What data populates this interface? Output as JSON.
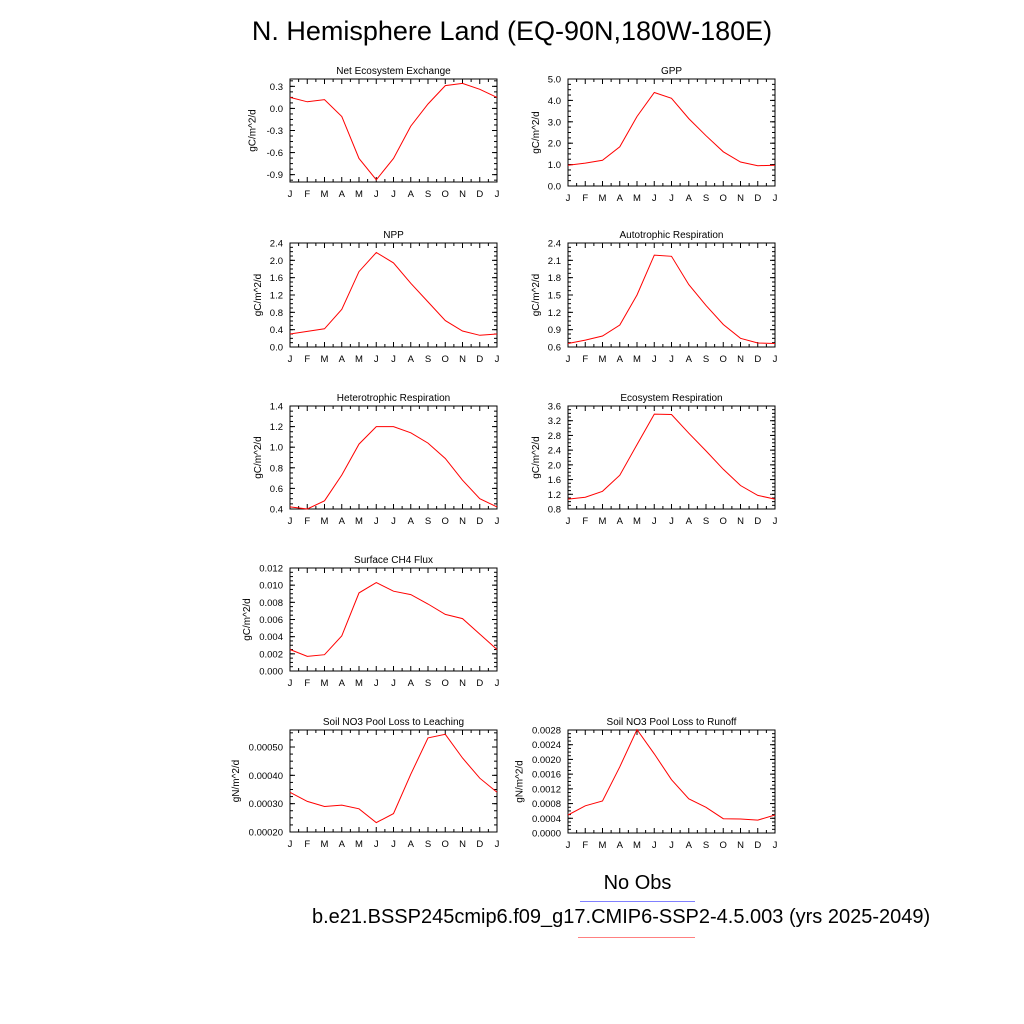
{
  "title": "N. Hemisphere Land (EQ-90N,180W-180E)",
  "legend": {
    "obs_label": "No Obs",
    "run_label": "b.e21.BSSP245cmip6.f09_g17.CMIP6-SSP2-4.5.003 (yrs 2025-2049)",
    "obs_color": "#8080ff",
    "run_color": "#ff8080"
  },
  "line_color": "#ff0000",
  "chart_data": [
    {
      "type": "line",
      "title": "Net Ecosystem Exchange",
      "ylabel": "gC/m^2/d",
      "x": [
        "J",
        "F",
        "M",
        "A",
        "M",
        "J",
        "J",
        "A",
        "S",
        "O",
        "N",
        "D",
        "J"
      ],
      "values": [
        0.15,
        0.09,
        0.12,
        -0.11,
        -0.68,
        -0.97,
        -0.68,
        -0.24,
        0.06,
        0.31,
        0.34,
        0.26,
        0.15
      ],
      "ylim": [
        -1.0,
        0.4
      ],
      "yticks": [
        "0.3",
        "0.0",
        "-0.3",
        "-0.6",
        "-0.9"
      ]
    },
    {
      "type": "line",
      "title": "GPP",
      "ylabel": "gC/m^2/d",
      "x": [
        "J",
        "F",
        "M",
        "A",
        "M",
        "J",
        "J",
        "A",
        "S",
        "O",
        "N",
        "D",
        "J"
      ],
      "values": [
        0.97,
        1.07,
        1.2,
        1.83,
        3.25,
        4.37,
        4.1,
        3.15,
        2.35,
        1.6,
        1.12,
        0.95,
        0.97
      ],
      "ylim": [
        0.0,
        5.0
      ],
      "yticks": [
        "5.0",
        "4.0",
        "3.0",
        "2.0",
        "1.0",
        "0.0"
      ]
    },
    {
      "type": "line",
      "title": "NPP",
      "ylabel": "gC/m^2/d",
      "x": [
        "J",
        "F",
        "M",
        "A",
        "M",
        "J",
        "J",
        "A",
        "S",
        "O",
        "N",
        "D",
        "J"
      ],
      "values": [
        0.3,
        0.36,
        0.42,
        0.87,
        1.74,
        2.18,
        1.94,
        1.47,
        1.04,
        0.61,
        0.37,
        0.27,
        0.3
      ],
      "ylim": [
        0.0,
        2.4
      ],
      "yticks": [
        "2.4",
        "2.0",
        "1.6",
        "1.2",
        "0.8",
        "0.4",
        "0.0"
      ]
    },
    {
      "type": "line",
      "title": "Autotrophic Respiration",
      "ylabel": "gC/m^2/d",
      "x": [
        "J",
        "F",
        "M",
        "A",
        "M",
        "J",
        "J",
        "A",
        "S",
        "O",
        "N",
        "D",
        "J"
      ],
      "values": [
        0.66,
        0.72,
        0.79,
        0.98,
        1.5,
        2.19,
        2.17,
        1.68,
        1.32,
        0.99,
        0.75,
        0.67,
        0.66
      ],
      "ylim": [
        0.6,
        2.4
      ],
      "yticks": [
        "2.4",
        "2.1",
        "1.8",
        "1.5",
        "1.2",
        "0.9",
        "0.6"
      ]
    },
    {
      "type": "line",
      "title": "Heterotrophic Respiration",
      "ylabel": "gC/m^2/d",
      "x": [
        "J",
        "F",
        "M",
        "A",
        "M",
        "J",
        "J",
        "A",
        "S",
        "O",
        "N",
        "D",
        "J"
      ],
      "values": [
        0.42,
        0.4,
        0.48,
        0.73,
        1.03,
        1.2,
        1.2,
        1.14,
        1.04,
        0.89,
        0.68,
        0.5,
        0.42
      ],
      "ylim": [
        0.4,
        1.4
      ],
      "yticks": [
        "1.4",
        "1.2",
        "1.0",
        "0.8",
        "0.6",
        "0.4"
      ]
    },
    {
      "type": "line",
      "title": "Ecosystem Respiration",
      "ylabel": "gC/m^2/d",
      "x": [
        "J",
        "F",
        "M",
        "A",
        "M",
        "J",
        "J",
        "A",
        "S",
        "O",
        "N",
        "D",
        "J"
      ],
      "values": [
        1.07,
        1.12,
        1.28,
        1.72,
        2.55,
        3.38,
        3.37,
        2.86,
        2.38,
        1.88,
        1.44,
        1.17,
        1.07
      ],
      "ylim": [
        0.8,
        3.6
      ],
      "yticks": [
        "3.6",
        "3.2",
        "2.8",
        "2.4",
        "2.0",
        "1.6",
        "1.2",
        "0.8"
      ]
    },
    {
      "type": "line",
      "title": "Surface CH4 Flux",
      "ylabel": "gC/m^2/d",
      "x": [
        "J",
        "F",
        "M",
        "A",
        "M",
        "J",
        "J",
        "A",
        "S",
        "O",
        "N",
        "D",
        "J"
      ],
      "values": [
        0.0025,
        0.0017,
        0.0019,
        0.0041,
        0.0091,
        0.0103,
        0.0093,
        0.0089,
        0.0078,
        0.0066,
        0.0061,
        0.0043,
        0.0025
      ],
      "ylim": [
        0.0,
        0.012
      ],
      "yticks": [
        "0.012",
        "0.010",
        "0.008",
        "0.006",
        "0.004",
        "0.002",
        "0.000"
      ]
    },
    {
      "type": "line",
      "title": "Soil NO3 Pool Loss to Leaching",
      "ylabel": "gN/m^2/d",
      "x": [
        "J",
        "F",
        "M",
        "A",
        "M",
        "J",
        "J",
        "A",
        "S",
        "O",
        "N",
        "D",
        "J"
      ],
      "values": [
        0.00034,
        0.000308,
        0.00029,
        0.000295,
        0.000282,
        0.000233,
        0.000265,
        0.000404,
        0.000532,
        0.000545,
        0.000461,
        0.00039,
        0.00034
      ],
      "ylim": [
        0.0002,
        0.00056
      ],
      "yticks": [
        "0.00050",
        "0.00040",
        "0.00030",
        "0.00020"
      ]
    },
    {
      "type": "line",
      "title": "Soil NO3 Pool Loss to Runoff",
      "ylabel": "gN/m^2/d",
      "x": [
        "J",
        "F",
        "M",
        "A",
        "M",
        "J",
        "J",
        "A",
        "S",
        "O",
        "N",
        "D",
        "J"
      ],
      "values": [
        0.00049,
        0.00074,
        0.00087,
        0.0018,
        0.00281,
        0.00215,
        0.00145,
        0.00093,
        0.0007,
        0.00039,
        0.00038,
        0.00035,
        0.00049
      ],
      "ylim": [
        0.0,
        0.0028
      ],
      "yticks": [
        "0.0028",
        "0.0024",
        "0.0020",
        "0.0016",
        "0.0012",
        "0.0008",
        "0.0004",
        "0.0000"
      ]
    }
  ]
}
